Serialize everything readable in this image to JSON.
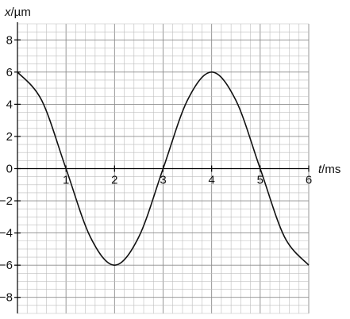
{
  "chart_data": {
    "type": "line",
    "xlabel": {
      "symbol": "t",
      "unit": "ms"
    },
    "ylabel": {
      "symbol": "x",
      "unit": "µm"
    },
    "xlim": [
      0,
      6
    ],
    "ylim": [
      -9,
      9
    ],
    "x_ticks": [
      1,
      2,
      3,
      4,
      5,
      6
    ],
    "y_ticks": [
      -8,
      -6,
      -4,
      -2,
      0,
      2,
      4,
      6,
      8
    ],
    "x_tick_labels": [
      "1",
      "2",
      "3",
      "4",
      "5",
      "6"
    ],
    "y_tick_labels": [
      "−8",
      "−6",
      "−4",
      "−2",
      "0",
      "2",
      "4",
      "6",
      "8"
    ],
    "grid": true,
    "series": [
      {
        "x": [
          0,
          0.5,
          1,
          1.5,
          2,
          2.5,
          3,
          3.5,
          4,
          4.5,
          5,
          5.5,
          6
        ],
        "y": [
          6,
          4.24,
          0,
          -4.24,
          -6,
          -4.24,
          0,
          4.24,
          6,
          4.24,
          0,
          -4.24,
          -6
        ]
      }
    ],
    "colors": {
      "curve": "#111111",
      "grid_minor": "#bdbdbd",
      "grid_major": "#8c8c8c"
    }
  }
}
